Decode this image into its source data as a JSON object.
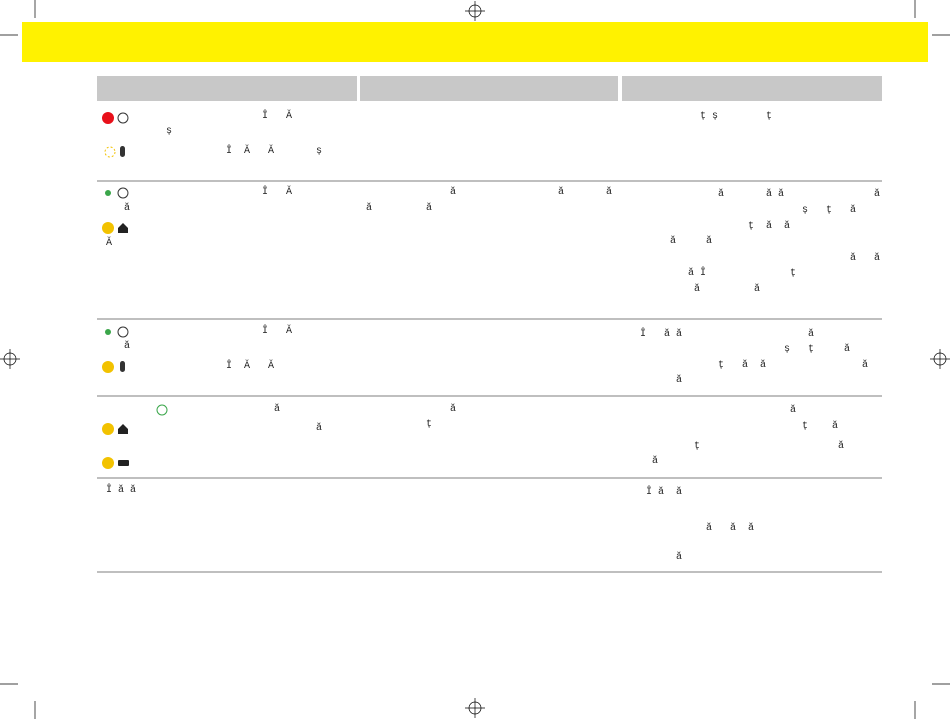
{
  "table": {
    "rows": [
      {
        "col1": [
          "                           Î   Ă",
          "           ș",
          "                     Î  Ă   Ă       ș"
        ],
        "col3": [
          "             ț ș        ț"
        ]
      },
      {
        "col1": [
          "                           Î   Ă",
          "    ă",
          " Ă"
        ],
        "col2": [
          "               ă                 ă       ă",
          " ă         ă"
        ],
        "col3": [
          "                ă       ă ă               ă",
          "                              ș   ț   ă",
          "                     ț  ă  ă",
          "        ă     ă",
          "                                      ă   ă",
          "           ă Î              ț",
          "            ă         ă"
        ]
      },
      {
        "col1": [
          "                           Î   Ă",
          "    ă",
          "                     Î  Ă   Ă"
        ],
        "col3": [
          "   Î   ă ă                     ă",
          "                           ș   ț     ă",
          "                ț   ă  ă                ă",
          "         ă"
        ]
      },
      {
        "col1": [
          "                             ă",
          "                                    ă"
        ],
        "col2": [
          "               ă",
          "           ț"
        ],
        "col3": [
          "                            ă",
          "                              ț    ă",
          "            ț                       ă",
          "     ă"
        ]
      },
      {
        "col1": [
          " Î ă ă"
        ],
        "col3": [
          "    Î ă  ă",
          "              ă   ă  ă",
          "         ă"
        ]
      }
    ]
  }
}
